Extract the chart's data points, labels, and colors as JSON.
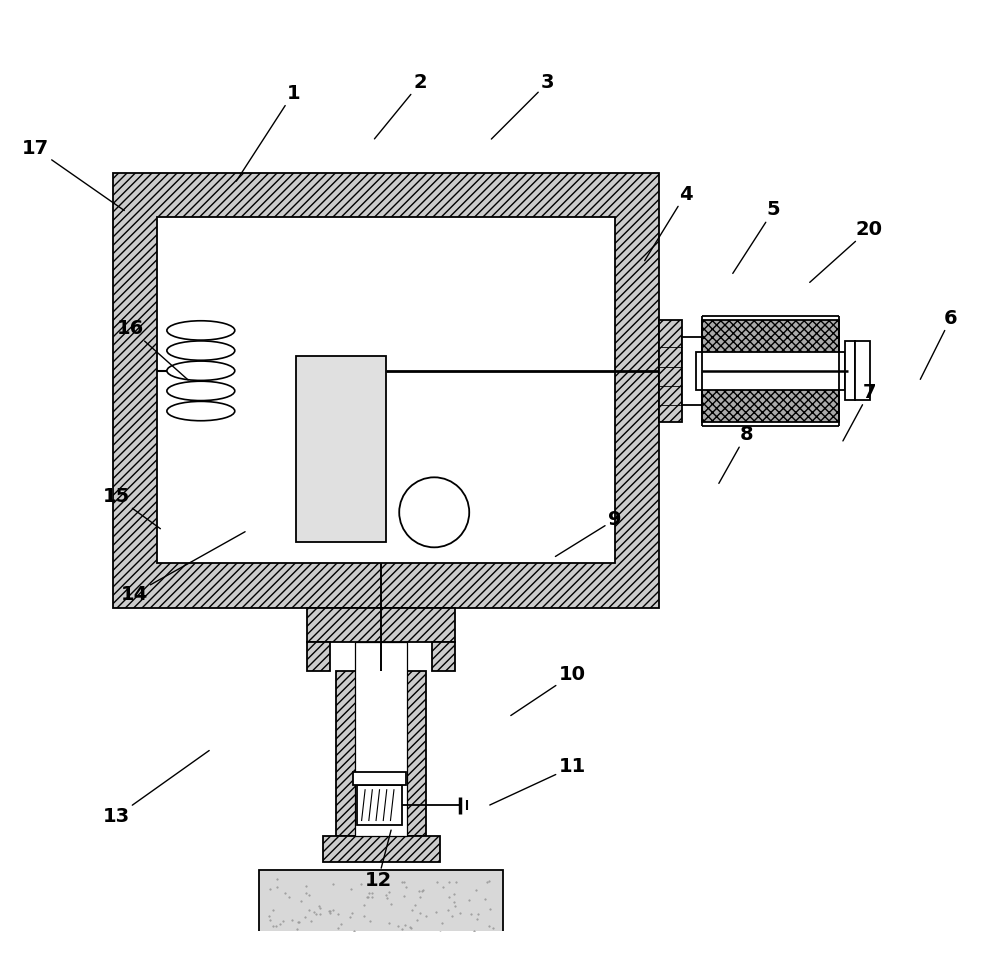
{
  "bg_color": "#ffffff",
  "lc": "#000000",
  "hatch_gray": "#cccccc",
  "label_fs": 14,
  "label_coords": {
    "1": [
      0.315,
      0.94,
      0.26,
      0.855
    ],
    "2": [
      0.435,
      0.95,
      0.39,
      0.895
    ],
    "3": [
      0.555,
      0.95,
      0.5,
      0.895
    ],
    "4": [
      0.685,
      0.845,
      0.645,
      0.78
    ],
    "5": [
      0.768,
      0.83,
      0.728,
      0.768
    ],
    "6": [
      0.935,
      0.728,
      0.905,
      0.668
    ],
    "7": [
      0.858,
      0.658,
      0.832,
      0.61
    ],
    "8": [
      0.742,
      0.618,
      0.715,
      0.57
    ],
    "9": [
      0.618,
      0.538,
      0.56,
      0.502
    ],
    "10": [
      0.578,
      0.392,
      0.518,
      0.352
    ],
    "11": [
      0.578,
      0.305,
      0.498,
      0.268
    ],
    "12": [
      0.395,
      0.198,
      0.408,
      0.248
    ],
    "13": [
      0.148,
      0.258,
      0.238,
      0.322
    ],
    "14": [
      0.165,
      0.468,
      0.272,
      0.528
    ],
    "15": [
      0.148,
      0.56,
      0.192,
      0.528
    ],
    "16": [
      0.162,
      0.718,
      0.218,
      0.668
    ],
    "17": [
      0.072,
      0.888,
      0.158,
      0.828
    ],
    "20": [
      0.858,
      0.812,
      0.8,
      0.76
    ]
  }
}
